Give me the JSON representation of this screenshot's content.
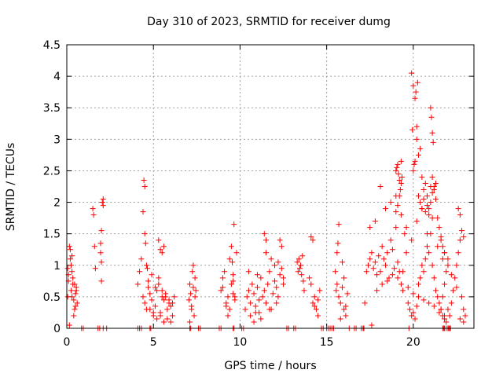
{
  "chart_data": {
    "type": "scatter",
    "title": "Day 310 of 2023, SRMTID for receiver dumg",
    "xlabel": "GPS time / hours",
    "ylabel": "SRMTID / TECUs",
    "xlim": [
      0,
      23.5
    ],
    "ylim": [
      0,
      4.5
    ],
    "x_ticks": [
      0,
      5,
      10,
      15,
      20
    ],
    "y_ticks": [
      0,
      0.5,
      1,
      1.5,
      2,
      2.5,
      3,
      3.5,
      4,
      4.5
    ],
    "x_tick_labels": [
      "0",
      "5",
      "10",
      "15",
      "20"
    ],
    "y_tick_labels": [
      "0",
      "0.5",
      "1",
      "1.5",
      "2",
      "2.5",
      "3",
      "3.5",
      "4",
      "4.5"
    ],
    "grid": true,
    "marker": "plus",
    "color": "#ff0000",
    "series": [
      {
        "x": [
          0.05,
          0.1,
          0.15,
          0.2,
          0.25,
          0.3,
          0.35,
          0.4,
          0.45,
          0.5,
          0.55,
          0.6,
          0.1,
          0.2,
          0.3,
          0.4,
          0.5,
          0.15,
          0.35,
          0.55,
          0.25,
          0.45,
          0.05,
          0.3,
          1.5,
          1.55,
          1.6,
          1.65,
          1.95,
          2.0,
          2.05,
          2.1,
          1.95,
          2.0,
          2.1,
          2.0,
          4.1,
          4.2,
          4.3,
          4.4,
          4.5,
          4.6,
          4.7,
          4.8,
          4.9,
          5.0,
          5.1,
          5.2,
          5.3,
          5.4,
          5.5,
          5.6,
          5.7,
          5.8,
          5.9,
          6.0,
          6.1,
          6.2,
          4.4,
          4.5,
          4.45,
          4.5,
          4.55,
          4.6,
          4.65,
          5.3,
          5.4,
          5.5,
          5.6,
          4.7,
          4.9,
          5.1,
          5.3,
          5.5,
          5.7,
          5.9,
          6.1,
          4.8,
          5.0,
          5.2,
          5.4,
          5.6,
          5.8,
          6.0,
          7.05,
          7.1,
          7.15,
          7.2,
          7.25,
          7.3,
          7.35,
          7.4,
          7.45,
          7.1,
          7.2,
          7.3,
          7.4,
          8.9,
          9.0,
          9.1,
          9.2,
          9.3,
          9.4,
          9.5,
          9.6,
          9.7,
          9.8,
          9.5,
          9.55,
          9.6,
          9.65,
          9.0,
          9.2,
          9.4,
          9.6,
          9.3,
          9.7,
          10.3,
          10.4,
          10.5,
          10.6,
          10.7,
          10.8,
          10.9,
          11.0,
          11.1,
          11.2,
          11.3,
          11.4,
          11.5,
          11.6,
          11.7,
          11.8,
          11.9,
          12.0,
          12.1,
          12.2,
          12.3,
          12.4,
          12.5,
          10.8,
          10.9,
          11.4,
          11.5,
          12.3,
          12.4,
          10.5,
          11.0,
          11.5,
          12.0,
          12.5,
          10.6,
          11.2,
          11.8,
          12.2,
          11.1,
          11.7,
          12.1,
          13.3,
          13.35,
          13.4,
          13.45,
          13.5,
          13.55,
          13.6,
          13.65,
          13.7,
          14.0,
          14.1,
          14.2,
          14.3,
          14.4,
          14.5,
          14.6,
          14.1,
          14.2,
          14.3,
          14.5,
          15.5,
          15.6,
          15.7,
          15.8,
          15.9,
          16.0,
          16.1,
          16.2,
          15.7,
          15.9,
          16.0,
          15.6,
          16.1,
          15.8,
          15.65,
          15.55,
          17.2,
          17.3,
          17.4,
          17.5,
          17.6,
          17.7,
          17.8,
          17.9,
          18.0,
          18.1,
          18.2,
          18.3,
          18.4,
          18.5,
          18.6,
          18.7,
          18.8,
          18.9,
          19.0,
          19.1,
          19.2,
          19.3,
          19.4,
          19.5,
          19.6,
          19.7,
          19.8,
          19.9,
          20.0,
          20.1,
          20.2,
          20.3,
          20.4,
          20.5,
          20.6,
          20.7,
          20.8,
          20.9,
          21.0,
          21.1,
          21.2,
          21.3,
          21.4,
          21.5,
          21.6,
          21.7,
          21.8,
          21.9,
          22.0,
          17.5,
          17.8,
          18.1,
          18.4,
          18.7,
          19.0,
          19.3,
          19.6,
          19.9,
          20.2,
          20.5,
          20.8,
          21.1,
          21.4,
          21.7,
          17.6,
          17.9,
          18.2,
          18.5,
          18.8,
          19.1,
          19.4,
          19.7,
          20.0,
          20.3,
          20.6,
          20.9,
          21.2,
          21.5,
          21.8,
          19.0,
          19.05,
          19.1,
          19.15,
          19.2,
          19.25,
          19.3,
          19.35,
          19.0,
          19.1,
          19.2,
          19.3,
          20.0,
          20.1,
          20.2,
          20.3,
          20.4,
          20.5,
          20.6,
          20.7,
          20.8,
          20.9,
          21.0,
          21.1,
          21.2,
          21.3,
          21.4,
          21.5,
          21.6,
          21.7,
          21.8,
          19.9,
          20.0,
          20.1,
          20.2,
          19.95,
          20.05,
          20.15,
          20.25,
          21.0,
          21.05,
          21.1,
          21.15,
          21.0,
          21.1,
          21.2,
          21.3,
          20.3,
          20.4,
          20.5,
          20.6,
          20.7,
          20.8,
          20.9,
          21.6,
          21.7,
          21.8,
          21.9,
          22.0,
          22.1,
          22.2,
          22.3,
          22.4,
          22.5,
          22.6,
          22.7,
          22.8,
          22.9,
          23.0,
          22.6,
          22.7,
          22.8,
          22.9,
          22.5,
          22.7,
          22.9,
          21.6,
          21.8,
          22.0,
          22.2
        ],
        "y": [
          0.95,
          0.85,
          1.3,
          1.25,
          0.6,
          0.5,
          0.7,
          0.45,
          0.3,
          0.55,
          0.65,
          0.4,
          0.75,
          1.1,
          0.9,
          0.2,
          0.35,
          0.05,
          0.8,
          0.6,
          1.0,
          0.7,
          0.5,
          1.15,
          1.9,
          1.8,
          1.3,
          0.95,
          1.2,
          0.75,
          2.0,
          1.95,
          1.35,
          1.05,
          2.05,
          1.55,
          0.7,
          0.9,
          1.1,
          0.5,
          0.4,
          0.3,
          0.65,
          0.55,
          0.45,
          0.2,
          0.35,
          0.6,
          0.8,
          0.25,
          0.5,
          0.45,
          0.55,
          0.3,
          0.4,
          0.35,
          0.2,
          0.5,
          1.85,
          1.5,
          2.35,
          2.25,
          1.35,
          1.0,
          0.95,
          1.4,
          1.25,
          1.2,
          1.3,
          0.75,
          0.85,
          0.65,
          0.7,
          0.6,
          0.5,
          0.45,
          0.4,
          0.3,
          0.25,
          0.15,
          0.2,
          0.1,
          0.15,
          0.1,
          0.45,
          0.7,
          0.55,
          0.3,
          0.9,
          0.65,
          0.2,
          0.8,
          0.6,
          0.1,
          0.35,
          1.0,
          0.5,
          0.6,
          0.8,
          0.9,
          0.4,
          0.5,
          0.3,
          0.7,
          0.55,
          0.45,
          1.2,
          1.3,
          1.05,
          0.85,
          1.65,
          0.65,
          0.35,
          1.1,
          0.75,
          0.2,
          0.5,
          0.3,
          0.5,
          0.6,
          0.4,
          0.7,
          0.55,
          0.35,
          0.65,
          0.45,
          0.8,
          0.5,
          0.6,
          0.4,
          0.7,
          0.9,
          0.3,
          0.55,
          0.75,
          0.65,
          0.5,
          0.85,
          0.95,
          0.7,
          0.1,
          0.25,
          1.5,
          1.4,
          1.4,
          1.3,
          0.9,
          0.85,
          1.2,
          1.0,
          0.8,
          0.2,
          0.15,
          1.1,
          1.05,
          0.25,
          0.3,
          0.4,
          1.05,
          0.9,
          1.1,
          0.95,
          1.0,
          0.85,
          1.15,
          0.75,
          0.6,
          0.8,
          0.7,
          1.4,
          0.5,
          0.3,
          0.45,
          0.6,
          1.45,
          0.4,
          0.35,
          0.2,
          0.9,
          0.7,
          0.5,
          0.4,
          0.65,
          0.3,
          0.2,
          0.55,
          1.65,
          1.05,
          0.8,
          1.2,
          0.35,
          0.15,
          1.35,
          0.6,
          0.4,
          0.9,
          1.0,
          1.1,
          1.2,
          0.95,
          1.05,
          0.85,
          1.15,
          0.9,
          1.3,
          1.1,
          1.0,
          1.2,
          0.8,
          1.4,
          1.25,
          0.95,
          1.6,
          1.05,
          0.9,
          0.7,
          0.6,
          1.5,
          1.2,
          0.4,
          0.3,
          0.2,
          0.25,
          0.15,
          0.35,
          0.5,
          0.8,
          1.0,
          0.9,
          1.1,
          1.3,
          1.2,
          1.5,
          1.0,
          0.8,
          0.6,
          0.5,
          0.4,
          0.3,
          0.2,
          0.15,
          0.1,
          0.3,
          1.6,
          1.7,
          2.25,
          1.9,
          2.0,
          2.1,
          1.8,
          1.6,
          1.4,
          1.7,
          1.9,
          1.5,
          1.75,
          1.3,
          1.1,
          0.05,
          0.6,
          0.7,
          0.75,
          0.85,
          0.8,
          0.9,
          0.65,
          0.55,
          0.7,
          0.45,
          0.4,
          0.35,
          0.25,
          0.2,
          2.5,
          2.55,
          2.6,
          2.45,
          2.35,
          2.2,
          2.65,
          2.4,
          1.85,
          1.95,
          2.1,
          2.3,
          2.5,
          2.65,
          3.0,
          2.75,
          2.85,
          2.4,
          2.2,
          2.3,
          2.1,
          1.9,
          2.0,
          2.15,
          2.25,
          2.05,
          1.75,
          1.6,
          1.45,
          1.3,
          1.2,
          4.05,
          3.85,
          3.65,
          3.2,
          3.15,
          2.6,
          3.75,
          3.9,
          3.5,
          3.35,
          3.1,
          2.95,
          2.25,
          2.4,
          2.2,
          2.3,
          2.1,
          2.0,
          1.9,
          2.05,
          1.85,
          1.95,
          1.8,
          0.3,
          0.5,
          0.7,
          0.9,
          1.1,
          0.2,
          0.4,
          0.6,
          0.8,
          1.0,
          1.2,
          1.4,
          0.5,
          0.3,
          0.2,
          1.9,
          1.8,
          1.55,
          1.45,
          0.65,
          0.15,
          0.1,
          1.4,
          1.2,
          1.0,
          0.85
        ]
      }
    ],
    "zero_line_x": [
      0.85,
      0.95,
      1.8,
      1.9,
      2.1,
      2.3,
      4.1,
      4.2,
      4.3,
      4.8,
      4.85,
      7.1,
      7.15,
      7.6,
      7.7,
      8.8,
      8.9,
      9.6,
      9.65,
      10.1,
      10.2,
      12.7,
      12.8,
      13.1,
      13.2,
      14.7,
      14.8,
      15.0,
      15.1,
      15.2,
      15.3,
      15.4,
      16.3,
      16.6,
      16.7,
      17.0,
      17.1,
      17.15,
      19.75,
      21.7,
      21.75,
      21.8,
      21.9,
      22.0,
      22.05,
      22.1,
      22.15
    ]
  }
}
